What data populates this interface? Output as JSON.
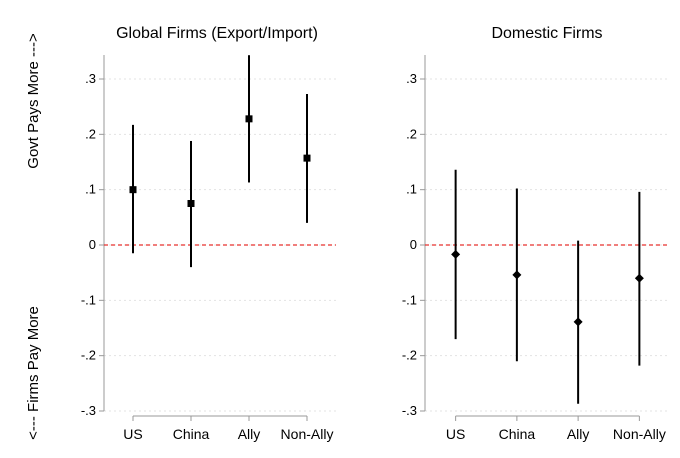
{
  "y_axis_title_top": "Govt Pays More --->",
  "y_axis_title_bottom": "<--- Firms Pay More",
  "chart_data": [
    {
      "type": "scatter",
      "title": "Global Firms (Export/Import)",
      "marker": "square",
      "categories": [
        "US",
        "China",
        "Ally",
        "Non-Ally"
      ],
      "y_ticks": [
        ".3",
        ".2",
        ".1",
        "0",
        "-.1",
        "-.2",
        "-.3"
      ],
      "ylim": [
        -0.3,
        0.35
      ],
      "series": [
        {
          "points": [
            {
              "x": "US",
              "estimate": 0.1,
              "ci_low": -0.015,
              "ci_high": 0.217
            },
            {
              "x": "China",
              "estimate": 0.075,
              "ci_low": -0.04,
              "ci_high": 0.188
            },
            {
              "x": "Ally",
              "estimate": 0.228,
              "ci_low": 0.113,
              "ci_high": 0.343
            },
            {
              "x": "Non-Ally",
              "estimate": 0.157,
              "ci_low": 0.04,
              "ci_high": 0.273
            }
          ]
        }
      ],
      "reference_line": 0,
      "reference_line_color": "#e8322f",
      "grid": true
    },
    {
      "type": "scatter",
      "title": "Domestic Firms",
      "marker": "diamond",
      "categories": [
        "US",
        "China",
        "Ally",
        "Non-Ally"
      ],
      "y_ticks": [
        ".3",
        ".2",
        ".1",
        "0",
        "-.1",
        "-.2",
        "-.3"
      ],
      "ylim": [
        -0.3,
        0.35
      ],
      "series": [
        {
          "points": [
            {
              "x": "US",
              "estimate": -0.017,
              "ci_low": -0.17,
              "ci_high": 0.136
            },
            {
              "x": "China",
              "estimate": -0.054,
              "ci_low": -0.21,
              "ci_high": 0.102
            },
            {
              "x": "Ally",
              "estimate": -0.139,
              "ci_low": -0.287,
              "ci_high": 0.008
            },
            {
              "x": "Non-Ally",
              "estimate": -0.06,
              "ci_low": -0.218,
              "ci_high": 0.096
            }
          ]
        }
      ],
      "reference_line": 0,
      "reference_line_color": "#e8322f",
      "grid": true
    }
  ]
}
